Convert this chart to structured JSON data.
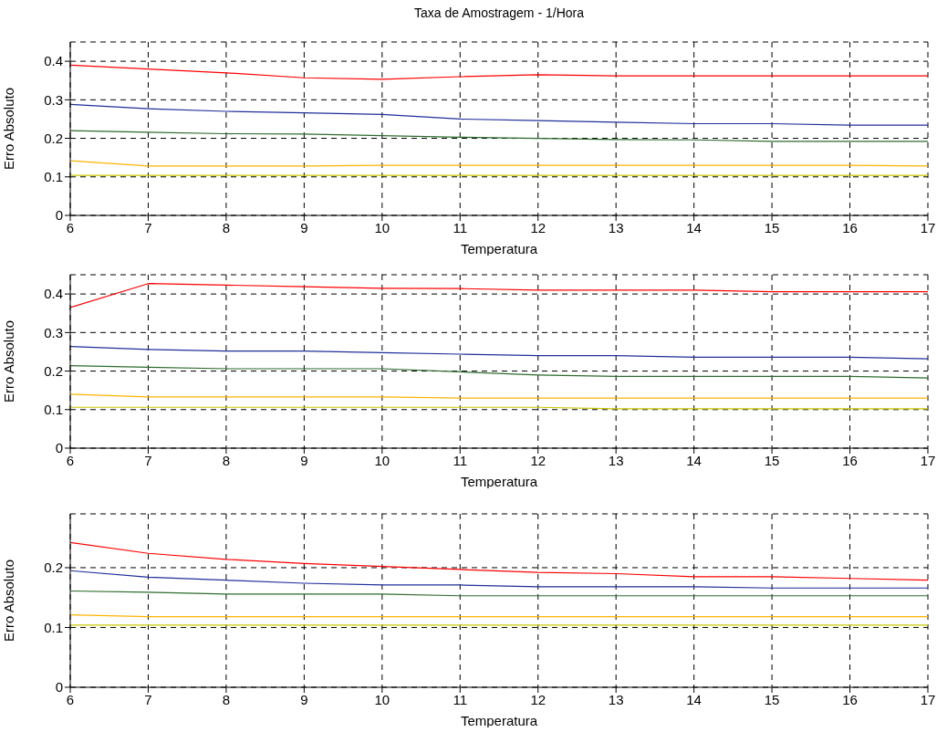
{
  "chart_data": [
    {
      "type": "line",
      "title": "Taxa de Amostragem - 1/Hora",
      "xlabel": "Temperatura",
      "ylabel": "Erro Absoluto",
      "x": [
        6,
        7,
        8,
        9,
        10,
        11,
        12,
        13,
        14,
        15,
        16,
        17
      ],
      "xlim": [
        6,
        17
      ],
      "ylim": [
        0,
        0.45
      ],
      "xticks": [
        6,
        7,
        8,
        9,
        10,
        11,
        12,
        13,
        14,
        15,
        16,
        17
      ],
      "yticks": [
        0,
        0.1,
        0.2,
        0.3,
        0.4
      ],
      "grid": true,
      "series": [
        {
          "color": "#ff0000",
          "values": [
            0.39,
            0.38,
            0.37,
            0.357,
            0.353,
            0.36,
            0.365,
            0.362,
            0.362,
            0.362,
            0.362,
            0.362
          ]
        },
        {
          "color": "#1f2f9a",
          "values": [
            0.288,
            0.277,
            0.27,
            0.266,
            0.262,
            0.25,
            0.246,
            0.242,
            0.238,
            0.238,
            0.234,
            0.234
          ]
        },
        {
          "color": "#2e6b2e",
          "values": [
            0.22,
            0.216,
            0.212,
            0.211,
            0.207,
            0.203,
            0.2,
            0.197,
            0.196,
            0.192,
            0.192,
            0.192
          ]
        },
        {
          "color": "#ffb400",
          "values": [
            0.142,
            0.128,
            0.128,
            0.128,
            0.13,
            0.13,
            0.13,
            0.13,
            0.13,
            0.13,
            0.13,
            0.128
          ]
        },
        {
          "color": "#c8c800",
          "values": [
            0.104,
            0.104,
            0.104,
            0.104,
            0.104,
            0.104,
            0.104,
            0.104,
            0.104,
            0.104,
            0.104,
            0.104
          ]
        }
      ]
    },
    {
      "type": "line",
      "xlabel": "Temperatura",
      "ylabel": "Erro Absoluto",
      "x": [
        6,
        7,
        8,
        9,
        10,
        11,
        12,
        13,
        14,
        15,
        16,
        17
      ],
      "xlim": [
        6,
        17
      ],
      "ylim": [
        0,
        0.45
      ],
      "xticks": [
        6,
        7,
        8,
        9,
        10,
        11,
        12,
        13,
        14,
        15,
        16,
        17
      ],
      "yticks": [
        0,
        0.1,
        0.2,
        0.3,
        0.4
      ],
      "grid": true,
      "series": [
        {
          "color": "#ff0000",
          "values": [
            0.365,
            0.427,
            0.423,
            0.419,
            0.415,
            0.414,
            0.41,
            0.41,
            0.41,
            0.406,
            0.406,
            0.406
          ]
        },
        {
          "color": "#1f2f9a",
          "values": [
            0.264,
            0.256,
            0.252,
            0.252,
            0.248,
            0.244,
            0.24,
            0.24,
            0.236,
            0.236,
            0.236,
            0.232
          ]
        },
        {
          "color": "#2e6b2e",
          "values": [
            0.214,
            0.21,
            0.206,
            0.206,
            0.206,
            0.198,
            0.19,
            0.186,
            0.186,
            0.186,
            0.186,
            0.182
          ]
        },
        {
          "color": "#ffb400",
          "values": [
            0.14,
            0.133,
            0.133,
            0.133,
            0.133,
            0.13,
            0.13,
            0.13,
            0.13,
            0.13,
            0.13,
            0.13
          ]
        },
        {
          "color": "#c8c800",
          "values": [
            0.106,
            0.106,
            0.106,
            0.106,
            0.106,
            0.106,
            0.106,
            0.102,
            0.102,
            0.102,
            0.102,
            0.102
          ]
        }
      ]
    },
    {
      "type": "line",
      "xlabel": "Temperatura",
      "ylabel": "Erro Absoluto",
      "x": [
        6,
        7,
        8,
        9,
        10,
        11,
        12,
        13,
        14,
        15,
        16,
        17
      ],
      "xlim": [
        6,
        17
      ],
      "ylim": [
        0,
        0.29
      ],
      "xticks": [
        6,
        7,
        8,
        9,
        10,
        11,
        12,
        13,
        14,
        15,
        16,
        17
      ],
      "yticks": [
        0,
        0.1,
        0.2
      ],
      "grid": true,
      "series": [
        {
          "color": "#ff0000",
          "values": [
            0.242,
            0.224,
            0.214,
            0.207,
            0.202,
            0.197,
            0.192,
            0.19,
            0.185,
            0.185,
            0.182,
            0.179
          ]
        },
        {
          "color": "#1f2f9a",
          "values": [
            0.195,
            0.184,
            0.179,
            0.174,
            0.171,
            0.171,
            0.168,
            0.168,
            0.168,
            0.166,
            0.166,
            0.166
          ]
        },
        {
          "color": "#2e6b2e",
          "values": [
            0.161,
            0.159,
            0.156,
            0.156,
            0.156,
            0.153,
            0.153,
            0.153,
            0.153,
            0.153,
            0.153,
            0.153
          ]
        },
        {
          "color": "#ffb400",
          "values": [
            0.121,
            0.118,
            0.118,
            0.118,
            0.118,
            0.118,
            0.118,
            0.118,
            0.118,
            0.118,
            0.118,
            0.118
          ]
        },
        {
          "color": "#c8c800",
          "values": [
            0.104,
            0.104,
            0.104,
            0.104,
            0.104,
            0.104,
            0.104,
            0.104,
            0.104,
            0.104,
            0.104,
            0.104
          ]
        }
      ]
    }
  ]
}
